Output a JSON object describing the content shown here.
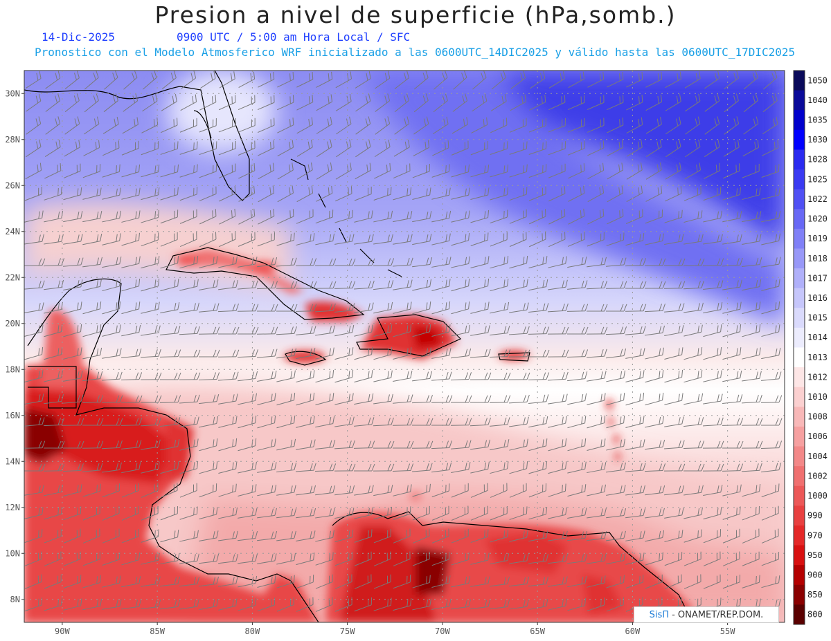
{
  "title": "Presion a nivel de superficie (hPa,somb.)",
  "date": "14-Dic-2025",
  "valid_time": "0900 UTC / 5:00 am Hora Local / SFC",
  "forecast_note": "Pronostico con el Modelo Atmosferico WRF inicializado a las 0600UTC_14DIC2025 y válido hasta las  0600UTC_17DIC2025",
  "credit": {
    "brand": "SisΠ",
    "text": "- ONAMET/REP.DOM."
  },
  "map": {
    "lon_range": [
      -92,
      -52
    ],
    "lat_range": [
      7,
      31
    ],
    "lat_ticks": [
      "30N",
      "28N",
      "26N",
      "24N",
      "22N",
      "20N",
      "18N",
      "16N",
      "14N",
      "12N",
      "10N",
      "8N"
    ],
    "lat_values": [
      30,
      28,
      26,
      24,
      22,
      20,
      18,
      16,
      14,
      12,
      10,
      8
    ],
    "lon_ticks": [
      "90W",
      "85W",
      "80W",
      "75W",
      "70W",
      "65W",
      "60W",
      "55W"
    ],
    "lon_values": [
      -90,
      -85,
      -80,
      -75,
      -70,
      -65,
      -60,
      -55
    ]
  },
  "colorbar": {
    "labels": [
      "1050",
      "1040",
      "1035",
      "1030",
      "1028",
      "1025",
      "1022",
      "1020",
      "1019",
      "1018",
      "1017",
      "1016",
      "1015",
      "1014",
      "1013",
      "1012",
      "1010",
      "1008",
      "1006",
      "1004",
      "1002",
      "1000",
      "990",
      "970",
      "950",
      "900",
      "850",
      "800"
    ],
    "colors": [
      "#0a0a5a",
      "#0a0a9a",
      "#0000cc",
      "#0000ff",
      "#2a2af0",
      "#3a3af2",
      "#5050f4",
      "#6868f5",
      "#8080f7",
      "#9898f8",
      "#b0b0fa",
      "#c6c6fb",
      "#dadafc",
      "#ececfd",
      "#ffffff",
      "#fde6e6",
      "#fbd0d0",
      "#f8b8b8",
      "#f6a0a0",
      "#f38888",
      "#f07070",
      "#ec5858",
      "#e84040",
      "#e42828",
      "#d81010",
      "#b40000",
      "#8a0000",
      "#5a0000"
    ]
  }
}
